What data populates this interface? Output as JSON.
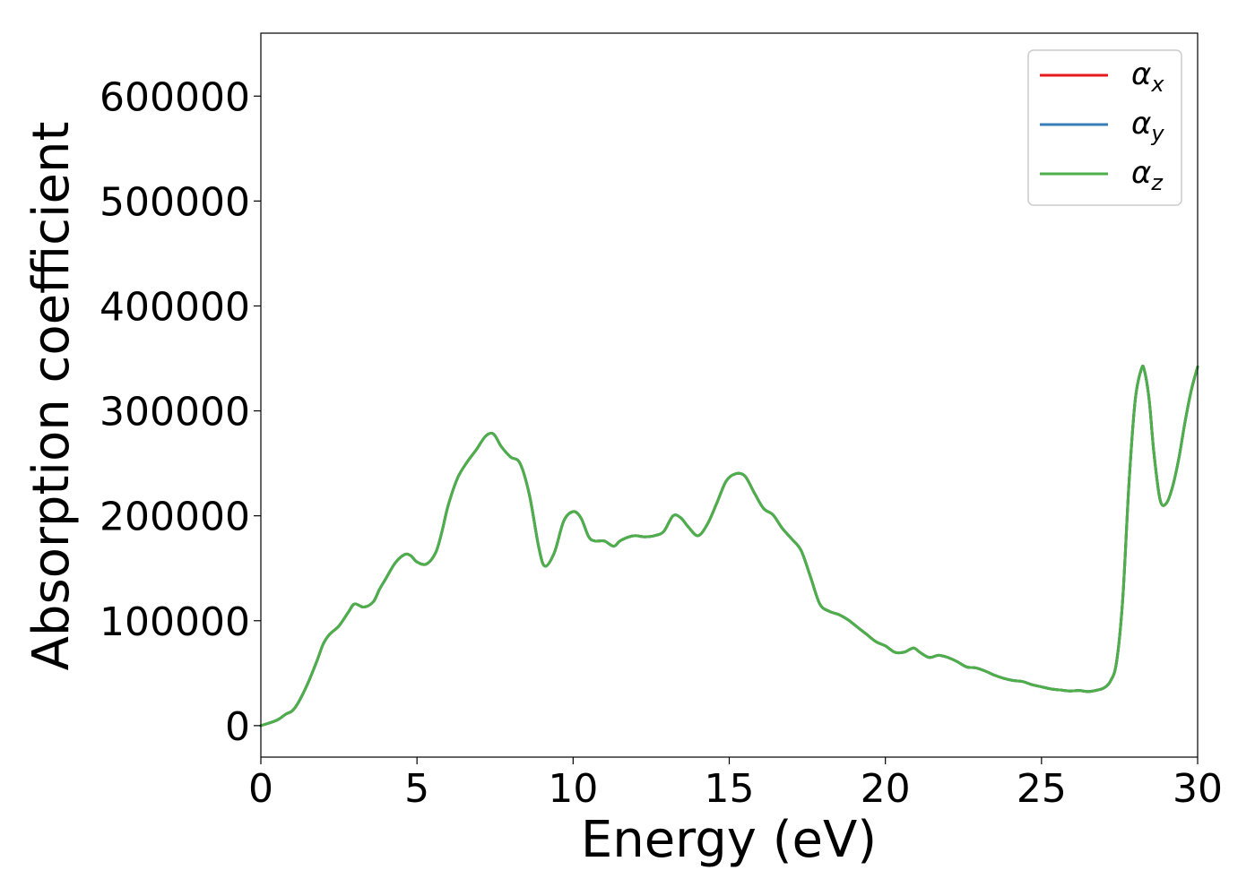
{
  "chart_data": {
    "type": "line",
    "xlabel": "Energy (eV)",
    "ylabel": "Absorption coefficient",
    "xlim": [
      0,
      30
    ],
    "ylim": [
      -30000,
      660000
    ],
    "xticks": [
      0,
      5,
      10,
      15,
      20,
      25,
      30
    ],
    "xtick_labels": [
      "0",
      "5",
      "10",
      "15",
      "20",
      "25",
      "30"
    ],
    "yticks": [
      0,
      100000,
      200000,
      300000,
      400000,
      500000,
      600000
    ],
    "ytick_labels": [
      "0",
      "100000",
      "200000",
      "300000",
      "400000",
      "500000",
      "600000"
    ],
    "grid": false,
    "legend": {
      "placement": "top-right"
    },
    "x": [
      0,
      0.5,
      0.8,
      1.0,
      1.2,
      1.5,
      1.8,
      2.0,
      2.2,
      2.5,
      2.8,
      3.0,
      3.3,
      3.6,
      3.8,
      4.0,
      4.3,
      4.6,
      4.8,
      5.0,
      5.3,
      5.6,
      5.8,
      6.0,
      6.3,
      6.6,
      6.9,
      7.2,
      7.45,
      7.7,
      8.0,
      8.3,
      8.6,
      8.9,
      9.1,
      9.4,
      9.7,
      10.0,
      10.25,
      10.5,
      10.7,
      11.0,
      11.3,
      11.5,
      11.8,
      12.0,
      12.3,
      12.6,
      12.9,
      13.2,
      13.45,
      13.7,
      14.0,
      14.3,
      14.6,
      14.9,
      15.2,
      15.5,
      15.8,
      16.1,
      16.4,
      16.7,
      17.0,
      17.3,
      17.6,
      17.9,
      18.2,
      18.5,
      18.8,
      19.1,
      19.4,
      19.7,
      20.0,
      20.3,
      20.6,
      20.9,
      21.1,
      21.4,
      21.7,
      22.0,
      22.3,
      22.6,
      22.9,
      23.2,
      23.5,
      23.8,
      24.1,
      24.4,
      24.7,
      25.0,
      25.3,
      25.6,
      25.9,
      26.2,
      26.5,
      26.8,
      27.0,
      27.2,
      27.4,
      27.6,
      27.8,
      28.0,
      28.2,
      28.3,
      28.45,
      28.6,
      28.8,
      29.0,
      29.2,
      29.4,
      29.6,
      29.8,
      30.0
    ],
    "series": [
      {
        "name": "x",
        "color": "#e41a1c",
        "values": [
          0,
          5000,
          11000,
          14000,
          22000,
          40000,
          62000,
          78000,
          87000,
          95000,
          108000,
          116000,
          113000,
          118000,
          130000,
          140000,
          155000,
          163000,
          162000,
          156000,
          154000,
          165000,
          185000,
          210000,
          236000,
          251000,
          263000,
          276000,
          278000,
          266000,
          256000,
          250000,
          220000,
          170000,
          152000,
          165000,
          195000,
          204000,
          198000,
          180000,
          176000,
          176000,
          171000,
          176000,
          180000,
          181000,
          180000,
          181000,
          185000,
          200000,
          198000,
          189000,
          181000,
          192000,
          212000,
          233000,
          240000,
          238000,
          222000,
          207000,
          201000,
          188000,
          178000,
          167000,
          142000,
          116000,
          109000,
          106000,
          101000,
          94000,
          87000,
          80000,
          76000,
          70000,
          70000,
          74000,
          70000,
          65000,
          67000,
          65000,
          61000,
          56000,
          55000,
          52000,
          48000,
          45000,
          43000,
          42000,
          39000,
          37000,
          35000,
          34000,
          33000,
          33500,
          32500,
          34000,
          36000,
          42000,
          60000,
          120000,
          230000,
          310000,
          340000,
          338000,
          310000,
          260000,
          215000,
          212000,
          228000,
          255000,
          290000,
          320000,
          342000
        ]
      },
      {
        "name": "y",
        "color": "#377eb8",
        "values": [
          0,
          5000,
          11000,
          14000,
          22000,
          40000,
          62000,
          78000,
          87000,
          95000,
          108000,
          116000,
          113000,
          118000,
          130000,
          140000,
          155000,
          163000,
          162000,
          156000,
          154000,
          165000,
          185000,
          210000,
          236000,
          251000,
          263000,
          276000,
          278000,
          266000,
          256000,
          250000,
          220000,
          170000,
          152000,
          165000,
          195000,
          204000,
          198000,
          180000,
          176000,
          176000,
          171000,
          176000,
          180000,
          181000,
          180000,
          181000,
          185000,
          200000,
          198000,
          189000,
          181000,
          192000,
          212000,
          233000,
          240000,
          238000,
          222000,
          207000,
          201000,
          188000,
          178000,
          167000,
          142000,
          116000,
          109000,
          106000,
          101000,
          94000,
          87000,
          80000,
          76000,
          70000,
          70000,
          74000,
          70000,
          65000,
          67000,
          65000,
          61000,
          56000,
          55000,
          52000,
          48000,
          45000,
          43000,
          42000,
          39000,
          37000,
          35000,
          34000,
          33000,
          33500,
          32500,
          34000,
          36000,
          42000,
          60000,
          120000,
          230000,
          310000,
          340000,
          338000,
          310000,
          260000,
          215000,
          212000,
          228000,
          255000,
          290000,
          320000,
          342000
        ]
      },
      {
        "name": "z",
        "color": "#4daf4a",
        "values": [
          0,
          5000,
          11000,
          14000,
          22000,
          40000,
          62000,
          78000,
          87000,
          95000,
          108000,
          116000,
          113000,
          118000,
          130000,
          140000,
          155000,
          163000,
          162000,
          156000,
          154000,
          165000,
          185000,
          210000,
          236000,
          251000,
          263000,
          276000,
          278000,
          266000,
          256000,
          250000,
          220000,
          170000,
          152000,
          165000,
          195000,
          204000,
          198000,
          180000,
          176000,
          176000,
          171000,
          176000,
          180000,
          181000,
          180000,
          181000,
          185000,
          200000,
          198000,
          189000,
          181000,
          192000,
          212000,
          233000,
          240000,
          238000,
          222000,
          207000,
          201000,
          188000,
          178000,
          167000,
          142000,
          116000,
          109000,
          106000,
          101000,
          94000,
          87000,
          80000,
          76000,
          70000,
          70000,
          74000,
          70000,
          65000,
          67000,
          65000,
          61000,
          56000,
          55000,
          52000,
          48000,
          45000,
          43000,
          42000,
          39000,
          37000,
          35000,
          34000,
          33000,
          33500,
          32500,
          34000,
          36000,
          42000,
          60000,
          120000,
          230000,
          310000,
          340000,
          338000,
          310000,
          260000,
          215000,
          212000,
          228000,
          255000,
          290000,
          320000,
          342000
        ]
      }
    ]
  }
}
